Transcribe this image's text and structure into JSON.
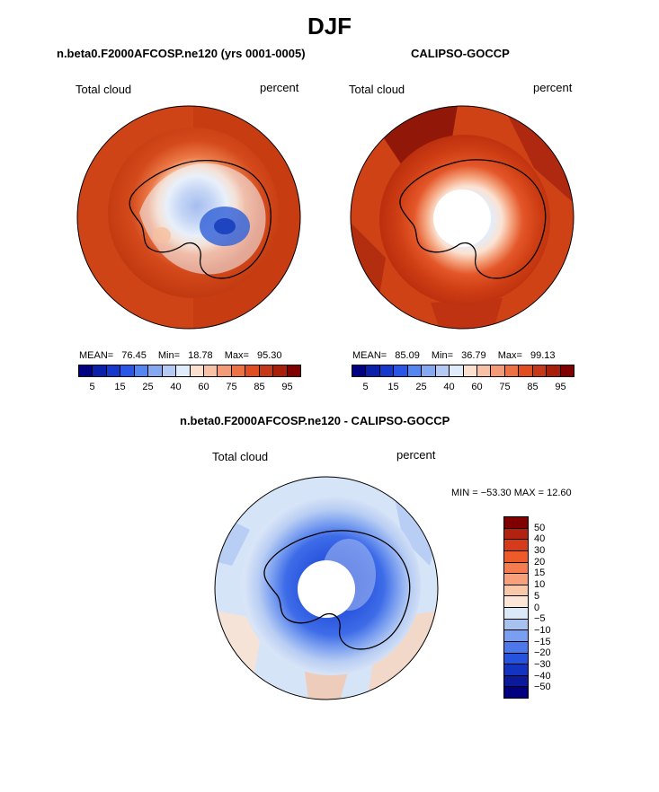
{
  "title": "DJF",
  "panels": {
    "model": {
      "title": "n.beta0.F2000AFCOSP.ne120 (yrs 0001-0005)",
      "left_label": "Total cloud",
      "right_label": "percent",
      "mean_label": "MEAN=",
      "mean": "76.45",
      "min_label": "Min=",
      "min": "18.78",
      "max_label": "Max=",
      "max": "95.30"
    },
    "obs": {
      "title": "CALIPSO-GOCCP",
      "left_label": "Total cloud",
      "right_label": "percent",
      "mean_label": "MEAN=",
      "mean": "85.09",
      "min_label": "Min=",
      "min": "36.79",
      "max_label": "Max=",
      "max": "99.13"
    },
    "diff": {
      "title": "n.beta0.F2000AFCOSP.ne120 - CALIPSO-GOCCP",
      "left_label": "Total cloud",
      "right_label": "percent",
      "minmax_text": "MIN = −53.30 MAX =  12.60"
    }
  },
  "colorbar_top": {
    "ticks": [
      "5",
      "15",
      "25",
      "40",
      "60",
      "75",
      "85",
      "95"
    ],
    "colors": [
      "#000080",
      "#0a1faa",
      "#1638cc",
      "#2a55e6",
      "#5585ee",
      "#85a8f0",
      "#b5c9f5",
      "#e0ecfa",
      "#fbe0d0",
      "#f8c0a5",
      "#f39a78",
      "#ec7246",
      "#e04d20",
      "#c7381a",
      "#a8200c",
      "#800000"
    ]
  },
  "colorbar_diff": {
    "ticks": [
      "50",
      "40",
      "30",
      "20",
      "15",
      "10",
      "5",
      "0",
      "−5",
      "−10",
      "−15",
      "−20",
      "−30",
      "−40",
      "−50"
    ],
    "colors": [
      "#800000",
      "#b22210",
      "#d63a1a",
      "#ef5a2a",
      "#f47c4e",
      "#f7a07a",
      "#f9c8a8",
      "#fbe6d8",
      "#dbe8f7",
      "#a8c2f0",
      "#7a9ff0",
      "#4c78ec",
      "#2652e0",
      "#1234c0",
      "#0a1a9a",
      "#000080"
    ]
  },
  "chart_data": [
    {
      "type": "heatmap",
      "title": "n.beta0.F2000AFCOSP.ne120 (yrs 0001-0005)",
      "projection": "south polar stereographic",
      "variable": "Total cloud",
      "units": "percent",
      "stats": {
        "mean": 76.45,
        "min": 18.78,
        "max": 95.3
      },
      "contour_levels": [
        5,
        10,
        15,
        20,
        25,
        30,
        40,
        50,
        60,
        65,
        70,
        75,
        80,
        85,
        90,
        95
      ]
    },
    {
      "type": "heatmap",
      "title": "CALIPSO-GOCCP",
      "projection": "south polar stereographic",
      "variable": "Total cloud",
      "units": "percent",
      "stats": {
        "mean": 85.09,
        "min": 36.79,
        "max": 99.13
      },
      "contour_levels": [
        5,
        10,
        15,
        20,
        25,
        30,
        40,
        50,
        60,
        65,
        70,
        75,
        80,
        85,
        90,
        95
      ]
    },
    {
      "type": "heatmap",
      "title": "n.beta0.F2000AFCOSP.ne120 - CALIPSO-GOCCP",
      "projection": "south polar stereographic",
      "variable": "Total cloud",
      "units": "percent",
      "stats": {
        "min": -53.3,
        "max": 12.6
      },
      "contour_levels": [
        -50,
        -40,
        -30,
        -20,
        -15,
        -10,
        -5,
        0,
        5,
        10,
        15,
        20,
        30,
        40,
        50
      ]
    }
  ]
}
